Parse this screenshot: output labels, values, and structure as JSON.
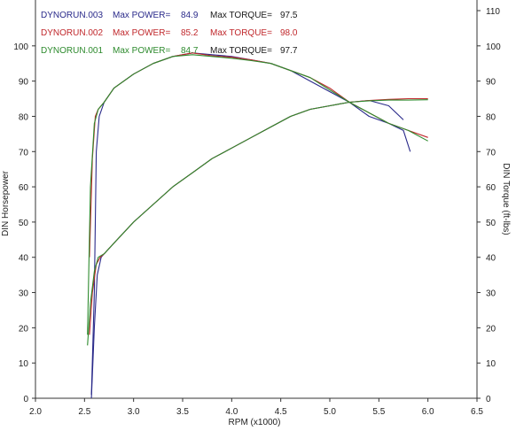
{
  "chart_data": {
    "type": "line",
    "xlabel": "RPM (x1000)",
    "ylabel_left": "DIN Horsepower",
    "ylabel_right": "DIN Torque (ft-lbs)",
    "xlim": [
      2.0,
      6.5
    ],
    "ylim": [
      0,
      110
    ],
    "x_ticks": [
      "2.0",
      "2.5",
      "3.0",
      "3.5",
      "4.0",
      "4.5",
      "5.0",
      "5.5",
      "6.0",
      "6.5"
    ],
    "y_ticks_left": [
      "0",
      "10",
      "20",
      "30",
      "40",
      "50",
      "60",
      "70",
      "80",
      "90",
      "100"
    ],
    "y_ticks_right": [
      "0",
      "10",
      "20",
      "30",
      "40",
      "50",
      "60",
      "70",
      "80",
      "90",
      "100",
      "110"
    ],
    "legend": [
      {
        "run": "DYNORUN.003",
        "power_label": "Max POWER=",
        "power": "84.9",
        "torque_label": "Max TORQUE=",
        "torque": "97.5",
        "color": "#2a2a8a"
      },
      {
        "run": "DYNORUN.002",
        "power_label": "Max POWER=",
        "power": "85.2",
        "torque_label": "Max TORQUE=",
        "torque": "98.0",
        "color": "#c0282c"
      },
      {
        "run": "DYNORUN.001",
        "power_label": "Max POWER=",
        "power": "84.7",
        "torque_label": "Max TORQUE=",
        "torque": "97.7",
        "color": "#2e8b2e"
      }
    ],
    "series": [
      {
        "color": "#2a2a8a",
        "kind": "torque",
        "x": [
          2.57,
          2.6,
          2.62,
          2.65,
          2.7,
          2.8,
          3.0,
          3.2,
          3.4,
          3.6,
          3.8,
          4.0,
          4.2,
          4.4,
          4.6,
          4.8,
          5.0,
          5.2,
          5.4,
          5.6,
          5.75,
          5.82
        ],
        "y": [
          1,
          30,
          70,
          80,
          84,
          88,
          92,
          95,
          97,
          98,
          97.5,
          97,
          96,
          95,
          93,
          90,
          87,
          84,
          80,
          78,
          76,
          70
        ]
      },
      {
        "color": "#c0282c",
        "kind": "torque",
        "x": [
          2.55,
          2.58,
          2.61,
          2.64,
          2.7,
          2.8,
          3.0,
          3.2,
          3.4,
          3.6,
          3.8,
          4.0,
          4.2,
          4.4,
          4.6,
          4.8,
          5.0,
          5.2,
          5.4,
          5.6,
          5.8,
          6.0
        ],
        "y": [
          40,
          68,
          80,
          82,
          84,
          88,
          92,
          95,
          97,
          98,
          97.2,
          96.8,
          96,
          95,
          93,
          91,
          88,
          84,
          81,
          78,
          76,
          74
        ]
      },
      {
        "color": "#2e8b2e",
        "kind": "torque",
        "x": [
          2.53,
          2.56,
          2.6,
          2.64,
          2.7,
          2.8,
          3.0,
          3.2,
          3.4,
          3.6,
          3.8,
          4.0,
          4.2,
          4.4,
          4.6,
          4.8,
          5.0,
          5.2,
          5.4,
          5.6,
          5.8,
          6.0
        ],
        "y": [
          18,
          60,
          78,
          82,
          84,
          88,
          92,
          95,
          97,
          97.5,
          97,
          96.5,
          95.8,
          95,
          93,
          91,
          87.5,
          84,
          81,
          78,
          76,
          73
        ]
      },
      {
        "color": "#2a2a8a",
        "kind": "power",
        "x": [
          2.57,
          2.6,
          2.63,
          2.67,
          2.7,
          2.8,
          3.0,
          3.2,
          3.4,
          3.6,
          3.8,
          4.0,
          4.2,
          4.4,
          4.6,
          4.8,
          5.0,
          5.2,
          5.4,
          5.6,
          5.75
        ],
        "y": [
          0,
          20,
          35,
          40,
          41,
          44,
          50,
          55,
          60,
          64,
          68,
          71,
          74,
          77,
          80,
          82,
          83,
          84,
          84.5,
          83,
          79
        ]
      },
      {
        "color": "#c0282c",
        "kind": "power",
        "x": [
          2.55,
          2.58,
          2.62,
          2.66,
          2.7,
          2.8,
          3.0,
          3.2,
          3.4,
          3.6,
          3.8,
          4.0,
          4.2,
          4.4,
          4.6,
          4.8,
          5.0,
          5.2,
          5.4,
          5.6,
          5.8,
          6.0
        ],
        "y": [
          18,
          30,
          38,
          40,
          41,
          44,
          50,
          55,
          60,
          64,
          68,
          71,
          74,
          77,
          80,
          82,
          83,
          84,
          84.5,
          84.8,
          85,
          85
        ]
      },
      {
        "color": "#2e8b2e",
        "kind": "power",
        "x": [
          2.53,
          2.56,
          2.6,
          2.64,
          2.7,
          2.8,
          3.0,
          3.2,
          3.4,
          3.6,
          3.8,
          4.0,
          4.2,
          4.4,
          4.6,
          4.8,
          5.0,
          5.2,
          5.4,
          5.6,
          5.8,
          6.0
        ],
        "y": [
          15,
          27,
          36,
          40,
          41,
          44,
          50,
          55,
          60,
          64,
          68,
          71,
          74,
          77,
          80,
          82,
          83,
          84,
          84.4,
          84.6,
          84.6,
          84.7
        ]
      }
    ]
  }
}
